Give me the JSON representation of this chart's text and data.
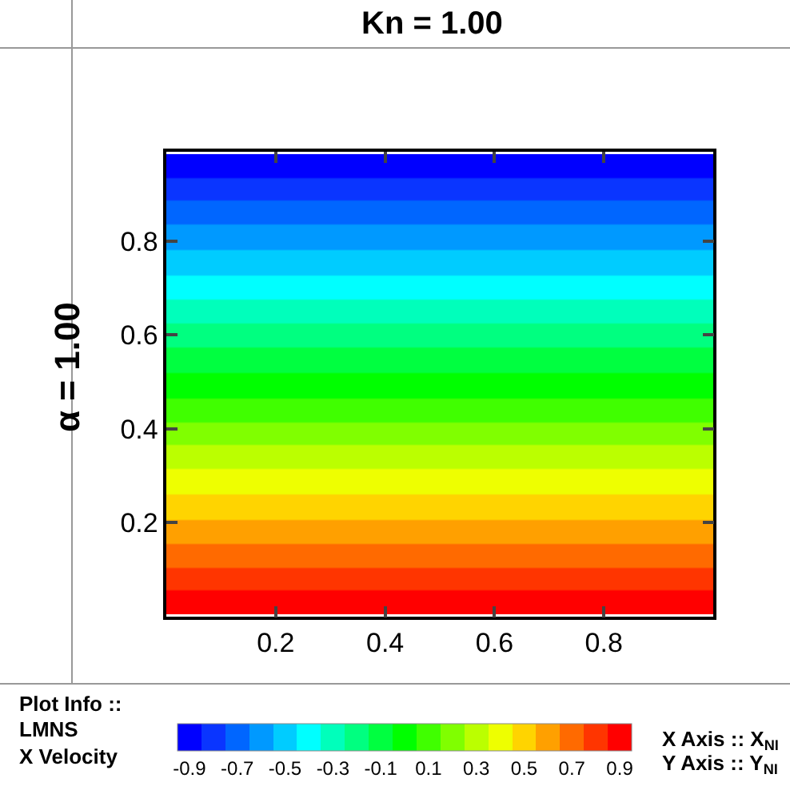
{
  "chart_data": {
    "type": "heatmap",
    "title": "Kn = 1.00",
    "ylabel": "α = 1.00",
    "clabel": "LMNS\nX Velocity",
    "annotations": [
      "Plot Info ::",
      "X Axis :: X$_{NI}$",
      "Y Axis :: Y$_{NI}$"
    ],
    "x": [
      0.25,
      0.75
    ],
    "y": [
      0.96,
      0.91,
      0.86,
      0.81,
      0.75,
      0.7,
      0.65,
      0.6,
      0.55,
      0.49,
      0.44,
      0.39,
      0.34,
      0.29,
      0.23,
      0.18,
      0.13,
      0.08,
      0.03
    ],
    "cells": [
      [
        -0.9,
        -0.9
      ],
      [
        -0.8,
        -0.8
      ],
      [
        -0.7,
        -0.7
      ],
      [
        -0.6,
        -0.6
      ],
      [
        -0.5,
        -0.5
      ],
      [
        -0.4,
        -0.4
      ],
      [
        -0.3,
        -0.3
      ],
      [
        -0.2,
        -0.2
      ],
      [
        -0.1,
        -0.1
      ],
      [
        0.0,
        0.0
      ],
      [
        0.1,
        0.1
      ],
      [
        0.2,
        0.2
      ],
      [
        0.3,
        0.3
      ],
      [
        0.4,
        0.4
      ],
      [
        0.5,
        0.5
      ],
      [
        0.6,
        0.6
      ],
      [
        0.7,
        0.7
      ],
      [
        0.8,
        0.8
      ],
      [
        0.9,
        0.9
      ]
    ],
    "colors": [
      "#0000ff",
      "#0a35ff",
      "#0066ff",
      "#0099ff",
      "#00ccff",
      "#00ffff",
      "#00ffbb",
      "#00ff80",
      "#00ff40",
      "#00ff00",
      "#40ff00",
      "#80ff00",
      "#bbff00",
      "#eeff00",
      "#ffd400",
      "#ffa000",
      "#ff6a00",
      "#ff3500",
      "#ff0000"
    ],
    "clim": [
      -0.95,
      0.95
    ],
    "cticks": [
      -0.9,
      -0.7,
      -0.5,
      -0.3,
      -0.1,
      0.1,
      0.3,
      0.5,
      0.7,
      0.9
    ],
    "xlim": [
      0,
      1
    ],
    "ylim": [
      0,
      0.99
    ],
    "xticks": [
      0.2,
      0.4,
      0.6,
      0.8
    ],
    "yticks": [
      0.2,
      0.4,
      0.6,
      0.8
    ]
  }
}
